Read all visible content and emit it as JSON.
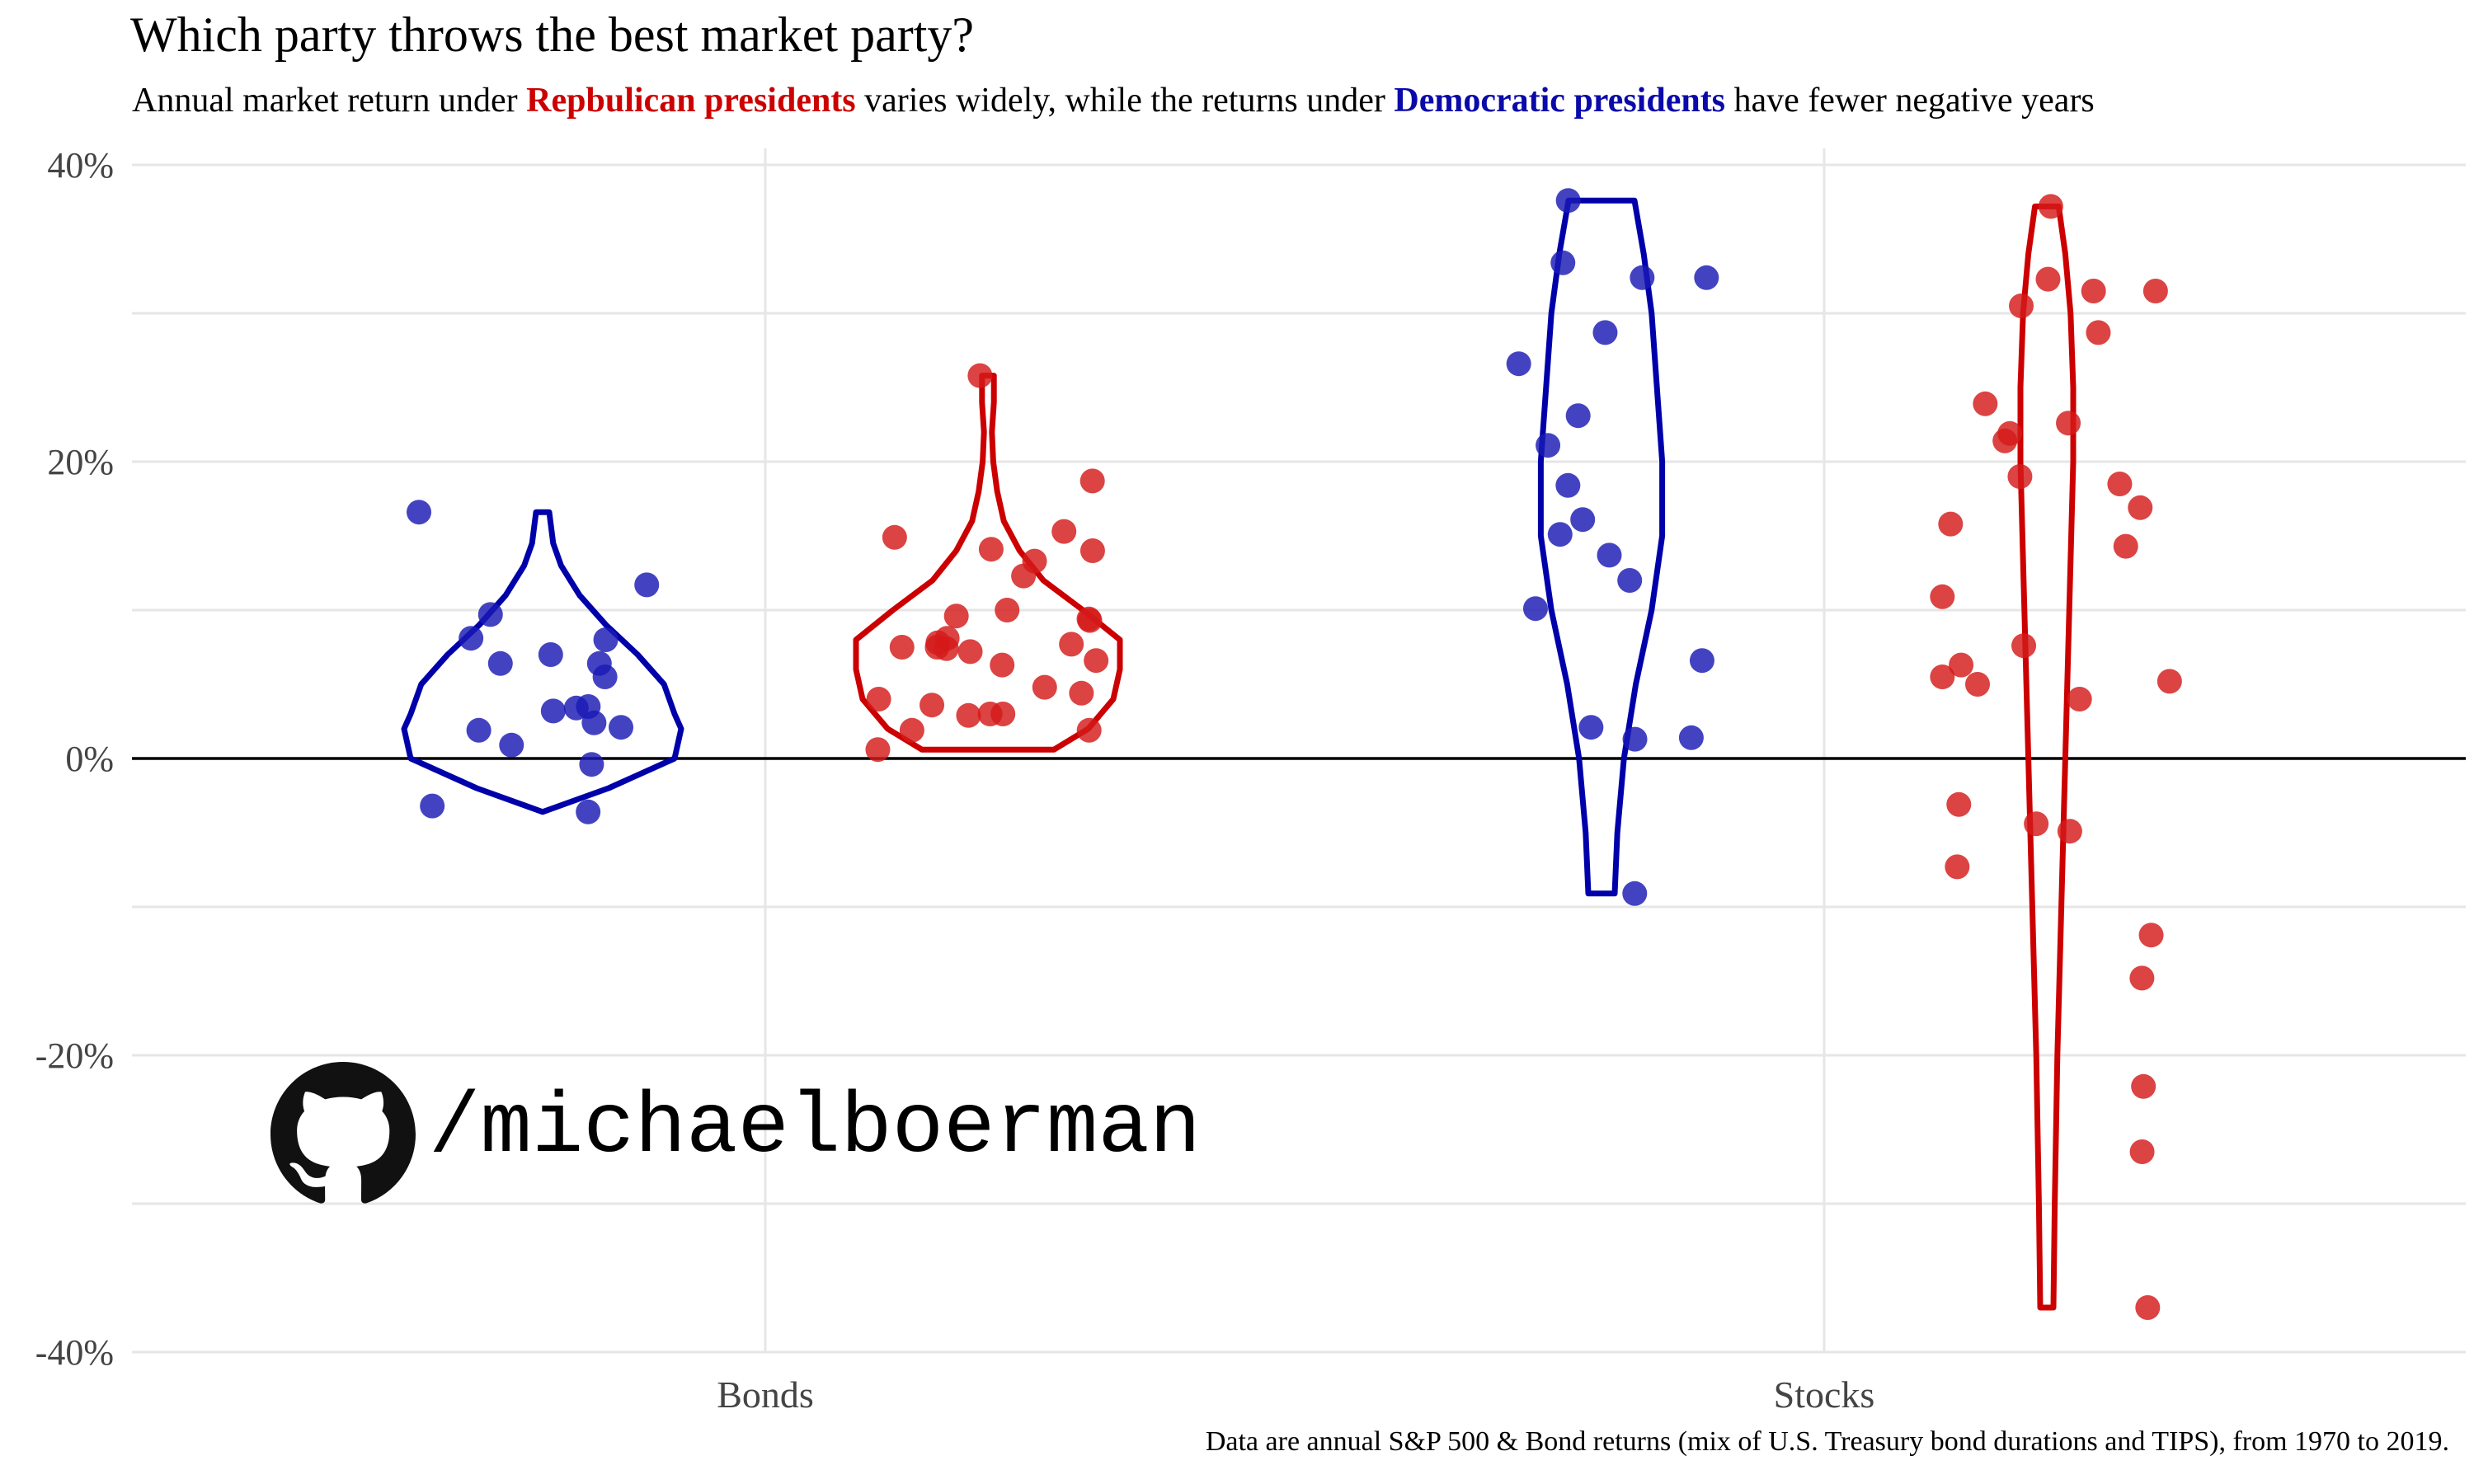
{
  "title": "Which party throws the best market party?",
  "subtitle": {
    "part1": "Annual market return under ",
    "rep": "Repbulican presidents",
    "part2": " varies widely, while the returns under ",
    "dem": "Democratic presidents",
    "part3": " have fewer negative years"
  },
  "caption": "Data are annual S&P 500 & Bond returns (mix of U.S. Treasury bond durations and TIPS), from 1970 to 2019.",
  "watermark": {
    "text": "/michaelboerman",
    "icon": "github-icon"
  },
  "colors": {
    "republican": "#d41a1a",
    "democratic": "#1a1ab4",
    "rep_outline": "#cc0000",
    "dem_outline": "#0000aa"
  },
  "chart_data": {
    "type": "scatter",
    "categories": [
      "Bonds",
      "Stocks"
    ],
    "ylim": [
      -40,
      40
    ],
    "yticks": [
      -40,
      -20,
      0,
      20,
      40
    ],
    "ytick_labels": [
      "-40%",
      "-20%",
      "0%",
      "20%",
      "40%"
    ],
    "grid": true,
    "series": [
      {
        "name": "Democratic presidents",
        "category": "Bonds",
        "color": "#1a1ab4",
        "values": [
          16.6,
          11.7,
          9.7,
          8.1,
          6.4,
          7.0,
          6.4,
          5.5,
          8.0,
          3.2,
          3.5,
          3.4,
          2.1,
          1.9,
          0.9,
          2.4,
          -0.4,
          -3.2,
          -3.6
        ],
        "violin": [
          [
            -3.6,
            0.0
          ],
          [
            -2,
            0.5
          ],
          [
            0,
            1.0
          ],
          [
            2,
            1.05
          ],
          [
            3,
            1.0
          ],
          [
            5,
            0.92
          ],
          [
            7,
            0.72
          ],
          [
            9,
            0.48
          ],
          [
            11,
            0.28
          ],
          [
            13,
            0.14
          ],
          [
            14.5,
            0.08
          ],
          [
            16.6,
            0.05
          ]
        ]
      },
      {
        "name": "Republican presidents",
        "category": "Bonds",
        "color": "#d41a1a",
        "values": [
          25.8,
          18.7,
          15.3,
          14.9,
          14.1,
          14.0,
          13.3,
          12.3,
          10.0,
          9.3,
          9.4,
          9.6,
          8.1,
          7.7,
          7.4,
          7.5,
          7.8,
          7.2,
          7.5,
          6.6,
          6.3,
          4.8,
          4.4,
          4.0,
          3.6,
          3.0,
          3.0,
          2.9,
          1.9,
          1.9,
          0.6
        ],
        "violin": [
          [
            0.6,
            0.5
          ],
          [
            2,
            0.76
          ],
          [
            4,
            0.95
          ],
          [
            6,
            1.0
          ],
          [
            8,
            1.0
          ],
          [
            10,
            0.72
          ],
          [
            12,
            0.42
          ],
          [
            14,
            0.24
          ],
          [
            16,
            0.12
          ],
          [
            18,
            0.07
          ],
          [
            20,
            0.04
          ],
          [
            22,
            0.03
          ],
          [
            24,
            0.045
          ],
          [
            25.8,
            0.045
          ]
        ]
      },
      {
        "name": "Democratic presidents",
        "category": "Stocks",
        "color": "#1a1ab4",
        "values": [
          37.6,
          33.4,
          32.4,
          32.4,
          28.7,
          26.6,
          23.1,
          21.1,
          18.4,
          16.1,
          15.1,
          13.7,
          12.0,
          10.1,
          6.6,
          2.1,
          1.4,
          1.3,
          -9.1
        ],
        "violin": [
          [
            -9.1,
            0.1
          ],
          [
            -5,
            0.12
          ],
          [
            0,
            0.17
          ],
          [
            5,
            0.26
          ],
          [
            10,
            0.38
          ],
          [
            15,
            0.46
          ],
          [
            20,
            0.46
          ],
          [
            25,
            0.42
          ],
          [
            30,
            0.38
          ],
          [
            34,
            0.32
          ],
          [
            37.6,
            0.25
          ]
        ]
      },
      {
        "name": "Republican presidents",
        "category": "Stocks",
        "color": "#d41a1a",
        "values": [
          37.2,
          32.3,
          31.5,
          31.5,
          30.5,
          28.7,
          23.9,
          22.6,
          21.9,
          21.4,
          19.0,
          18.5,
          16.9,
          15.8,
          14.3,
          10.9,
          7.6,
          6.3,
          5.5,
          5.2,
          5.0,
          4.0,
          -3.1,
          -4.4,
          -4.9,
          -7.3,
          -11.9,
          -14.8,
          -22.1,
          -26.5,
          -37.0
        ],
        "violin": [
          [
            -37.0,
            0.05
          ],
          [
            -30,
            0.06
          ],
          [
            -20,
            0.08
          ],
          [
            -10,
            0.11
          ],
          [
            0,
            0.14
          ],
          [
            10,
            0.17
          ],
          [
            20,
            0.2
          ],
          [
            25,
            0.2
          ],
          [
            30,
            0.18
          ],
          [
            34,
            0.14
          ],
          [
            37.2,
            0.09
          ]
        ]
      }
    ]
  }
}
